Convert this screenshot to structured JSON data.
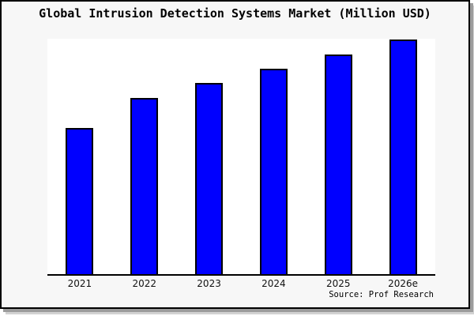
{
  "window": {
    "background_color": "#f7f7f7",
    "frame_border_color": "#000000",
    "shadow_color": "#9c9c9c",
    "plot_background_color": "#ffffff"
  },
  "header": {
    "title": "Global Intrusion Detection Systems Market (Million USD)"
  },
  "footer": {
    "source": "Source: Prof Research"
  },
  "chart_data": {
    "type": "bar",
    "title": "Global Intrusion Detection Systems Market (Million USD)",
    "categories": [
      "2021",
      "2022",
      "2023",
      "2024",
      "2025",
      "2026e"
    ],
    "values_pct_of_max": [
      62.3,
      75.1,
      81.5,
      87.5,
      93.6,
      100
    ],
    "value_axis_note": "no y-axis tick labels or gridlines shown; values estimated relative to tallest bar (2026e = 100)",
    "xlabel": "",
    "ylabel": "",
    "grid": false,
    "legend": false,
    "y_axis_visible": false,
    "bar_color": "#0000ff",
    "bar_border_color": "#000000",
    "source": "Source: Prof Research"
  }
}
